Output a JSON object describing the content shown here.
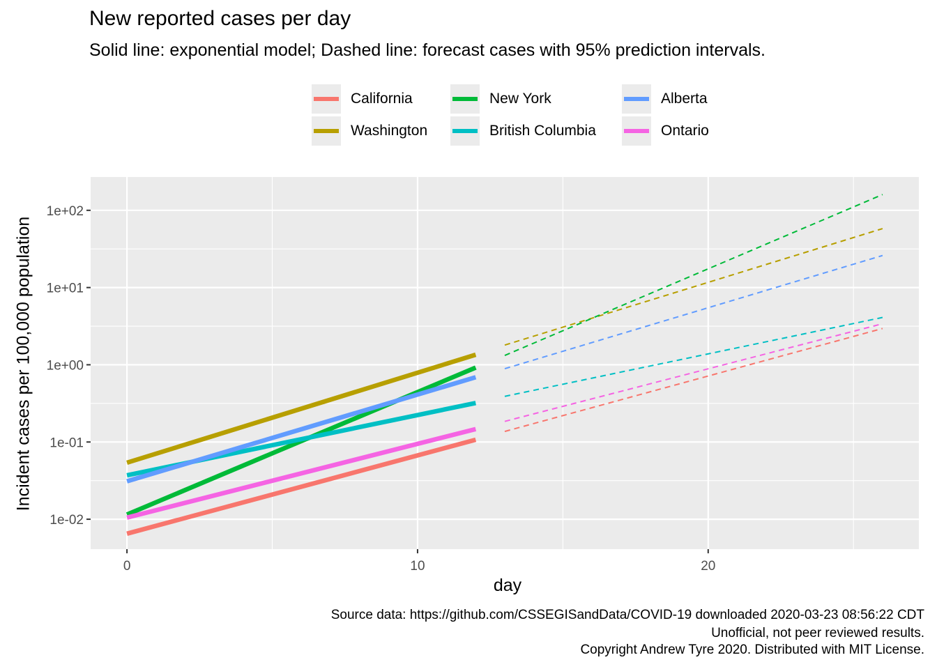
{
  "title": "New reported cases per day",
  "subtitle": "Solid line: exponential model; Dashed line: forecast cases with 95% prediction intervals.",
  "caption": [
    "Source data: https://github.com/CSSEGISandData/COVID-19 downloaded  2020-03-23 08:56:22 CDT",
    "Unofficial, not peer reviewed results.",
    "Copyright Andrew Tyre 2020. Distributed with MIT License."
  ],
  "chart_data": {
    "type": "line",
    "title": "New reported cases per day",
    "xlabel": "day",
    "ylabel": "Incident cases per 100,000 population",
    "y_scale": "log10",
    "xlim": [
      -1.25,
      27.25
    ],
    "ylim": [
      0.0041,
      270
    ],
    "x_ticks": [
      0,
      10,
      20
    ],
    "x_tick_labels": [
      "0",
      "10",
      "20"
    ],
    "y_ticks": [
      0.01,
      0.1,
      1,
      10,
      100
    ],
    "y_tick_labels": [
      "1e-02",
      "1e-01",
      "1e+00",
      "1e+01",
      "1e+02"
    ],
    "grid": true,
    "legend_position": "top",
    "legend": [
      "California",
      "Washington",
      "New York",
      "British Columbia",
      "Alberta",
      "Ontario"
    ],
    "series": [
      {
        "name": "California",
        "color": "#F8766D",
        "fitted": {
          "x": [
            0,
            12
          ],
          "y": [
            0.0065,
            0.107
          ]
        },
        "forecast": {
          "x": [
            13,
            26
          ],
          "y": [
            0.137,
            2.95
          ]
        }
      },
      {
        "name": "Washington",
        "color": "#B79F00",
        "fitted": {
          "x": [
            0,
            12
          ],
          "y": [
            0.054,
            1.35
          ]
        },
        "forecast": {
          "x": [
            13,
            26
          ],
          "y": [
            1.8,
            58
          ]
        }
      },
      {
        "name": "New York",
        "color": "#00BA38",
        "fitted": {
          "x": [
            0,
            12
          ],
          "y": [
            0.0115,
            0.92
          ]
        },
        "forecast": {
          "x": [
            13,
            26
          ],
          "y": [
            1.32,
            160
          ]
        }
      },
      {
        "name": "British Columbia",
        "color": "#00BFC4",
        "fitted": {
          "x": [
            0,
            12
          ],
          "y": [
            0.037,
            0.32
          ]
        },
        "forecast": {
          "x": [
            13,
            26
          ],
          "y": [
            0.39,
            4.1
          ]
        }
      },
      {
        "name": "Alberta",
        "color": "#619CFF",
        "fitted": {
          "x": [
            0,
            12
          ],
          "y": [
            0.031,
            0.69
          ]
        },
        "forecast": {
          "x": [
            13,
            26
          ],
          "y": [
            0.89,
            26
          ]
        }
      },
      {
        "name": "Ontario",
        "color": "#F564E3",
        "fitted": {
          "x": [
            0,
            12
          ],
          "y": [
            0.0105,
            0.147
          ]
        },
        "forecast": {
          "x": [
            13,
            26
          ],
          "y": [
            0.185,
            3.4
          ]
        }
      }
    ]
  }
}
